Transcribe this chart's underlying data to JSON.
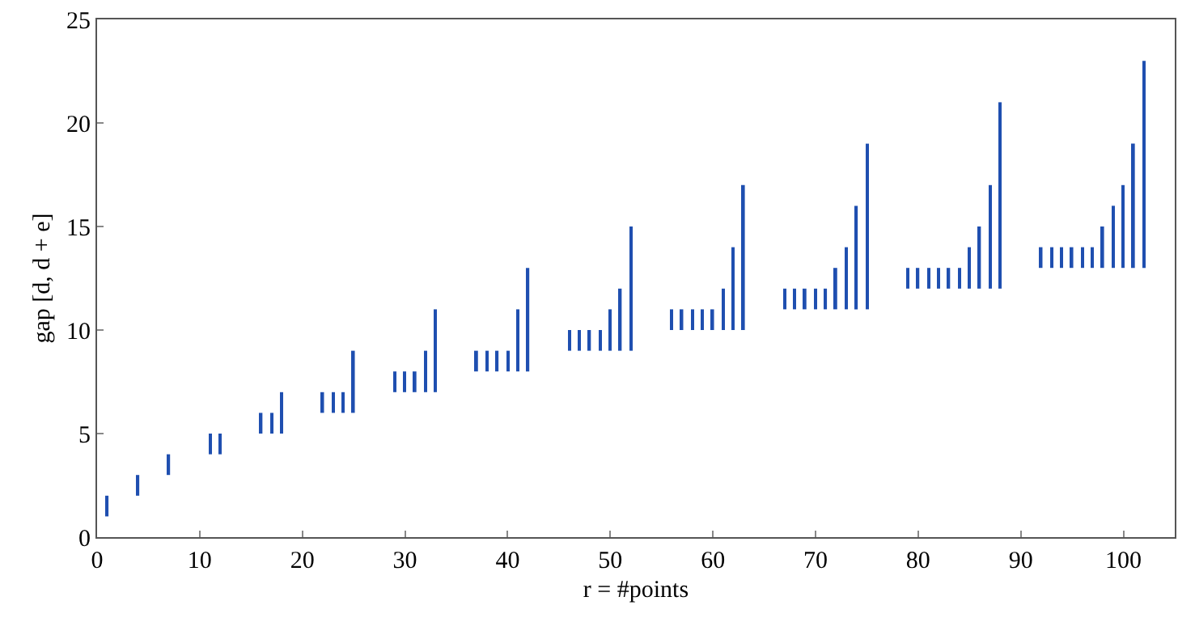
{
  "chart_data": {
    "type": "bar",
    "xlabel": "r = #points",
    "ylabel": "gap [d, d + e]",
    "x": [
      1,
      4,
      7,
      11,
      12,
      16,
      17,
      18,
      22,
      23,
      24,
      25,
      29,
      30,
      31,
      32,
      33,
      37,
      38,
      39,
      40,
      41,
      42,
      46,
      47,
      48,
      49,
      50,
      51,
      52,
      56,
      57,
      58,
      59,
      60,
      61,
      62,
      63,
      67,
      68,
      69,
      70,
      71,
      72,
      73,
      74,
      75,
      79,
      80,
      81,
      82,
      83,
      84,
      85,
      86,
      87,
      88,
      92,
      93,
      94,
      95,
      96,
      97,
      98,
      99,
      100,
      101,
      102
    ],
    "base": [
      1,
      2,
      3,
      4,
      4,
      5,
      5,
      5,
      6,
      6,
      6,
      6,
      7,
      7,
      7,
      7,
      7,
      8,
      8,
      8,
      8,
      8,
      8,
      9,
      9,
      9,
      9,
      9,
      9,
      9,
      10,
      10,
      10,
      10,
      10,
      10,
      10,
      10,
      11,
      11,
      11,
      11,
      11,
      11,
      11,
      11,
      11,
      12,
      12,
      12,
      12,
      12,
      12,
      12,
      12,
      12,
      12,
      13,
      13,
      13,
      13,
      13,
      13,
      13,
      13,
      13,
      13,
      13
    ],
    "values": [
      1,
      1,
      1,
      1,
      1,
      1,
      1,
      2,
      1,
      1,
      1,
      3,
      1,
      1,
      1,
      2,
      4,
      1,
      1,
      1,
      1,
      3,
      5,
      1,
      1,
      1,
      1,
      2,
      3,
      6,
      1,
      1,
      1,
      1,
      1,
      2,
      4,
      7,
      1,
      1,
      1,
      1,
      1,
      2,
      3,
      5,
      8,
      1,
      1,
      1,
      1,
      1,
      1,
      2,
      3,
      5,
      9,
      1,
      1,
      1,
      1,
      1,
      1,
      2,
      3,
      4,
      6,
      10
    ],
    "color": "#1f4fb0",
    "xlim": [
      0,
      105
    ],
    "xticks": [
      0,
      10,
      20,
      30,
      40,
      50,
      60,
      70,
      80,
      90,
      100
    ],
    "ylim": [
      0,
      25
    ],
    "yticks": [
      0,
      5,
      10,
      15,
      20,
      25
    ]
  }
}
